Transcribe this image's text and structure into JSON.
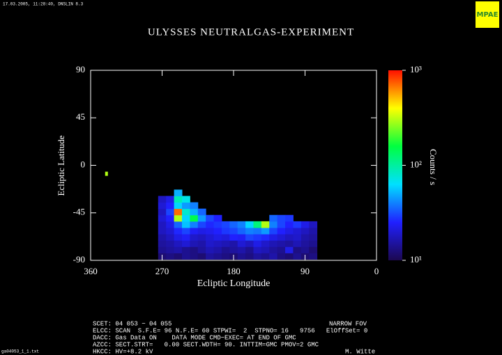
{
  "header": {
    "stamp": "17.03.2005, 11:28:40, DNSLIN 8.3",
    "logo": "MPAE"
  },
  "chart_data": {
    "type": "heatmap",
    "title": "ULYSSES NEUTRALGAS-EXPERIMENT",
    "x_label": "Ecliptic Longitude",
    "y_label": "Ecliptic Latitude",
    "xlim": [
      360,
      0
    ],
    "xticks": [
      360,
      270,
      180,
      90,
      0
    ],
    "ylim": [
      -90,
      90
    ],
    "yticks": [
      90,
      45,
      0,
      -45,
      -90
    ],
    "x": [
      270,
      260,
      250,
      240,
      230,
      220,
      210,
      200,
      190,
      180,
      170,
      160,
      150,
      140,
      130,
      120,
      110,
      100,
      90,
      80
    ],
    "y": [
      -86,
      -80,
      -74,
      -68,
      -62,
      -56,
      -50,
      -44,
      -38,
      -32,
      -26
    ],
    "z": [
      [
        12,
        13,
        12,
        14,
        13,
        12,
        15,
        14,
        13,
        12,
        14,
        13,
        15,
        14,
        16,
        13,
        12,
        14,
        12,
        13
      ],
      [
        14,
        15,
        16,
        14,
        13,
        15,
        17,
        16,
        14,
        15,
        16,
        14,
        18,
        17,
        15,
        14,
        22,
        13,
        14,
        12
      ],
      [
        15,
        16,
        18,
        20,
        17,
        16,
        19,
        18,
        17,
        16,
        20,
        18,
        22,
        19,
        17,
        16,
        15,
        17,
        15,
        14
      ],
      [
        16,
        18,
        22,
        24,
        19,
        18,
        20,
        22,
        21,
        25,
        24,
        30,
        28,
        26,
        22,
        20,
        18,
        19,
        16,
        15
      ],
      [
        18,
        20,
        26,
        30,
        24,
        22,
        23,
        25,
        28,
        30,
        35,
        40,
        38,
        45,
        30,
        25,
        22,
        20,
        18,
        16
      ],
      [
        18,
        22,
        35,
        55,
        40,
        30,
        26,
        28,
        30,
        35,
        40,
        60,
        120,
        300,
        40,
        30,
        25,
        28,
        22,
        18
      ],
      [
        20,
        25,
        300,
        60,
        150,
        45,
        30,
        25,
        null,
        null,
        null,
        null,
        null,
        null,
        35,
        30,
        28,
        null,
        null,
        null
      ],
      [
        18,
        30,
        700,
        80,
        50,
        35,
        null,
        null,
        null,
        null,
        null,
        null,
        null,
        null,
        null,
        null,
        null,
        null,
        null,
        null
      ],
      [
        20,
        25,
        60,
        45,
        40,
        null,
        null,
        null,
        null,
        null,
        null,
        null,
        null,
        null,
        null,
        null,
        null,
        null,
        null,
        null
      ],
      [
        18,
        22,
        90,
        70,
        null,
        null,
        null,
        null,
        null,
        null,
        null,
        null,
        null,
        null,
        null,
        null,
        null,
        null,
        null,
        null
      ],
      [
        null,
        null,
        50,
        null,
        null,
        null,
        null,
        null,
        null,
        null,
        null,
        null,
        null,
        null,
        null,
        null,
        null,
        null,
        null,
        null
      ]
    ],
    "isolated": {
      "x": 340,
      "y": -8,
      "z": 300
    },
    "colorbar": {
      "label": "Counts / s",
      "lim": [
        10,
        1000
      ],
      "log": true,
      "ticks": [
        {
          "value": 1000,
          "label": "10³"
        },
        {
          "value": 100,
          "label": "10²"
        },
        {
          "value": 10,
          "label": "10¹"
        }
      ],
      "colors": [
        "#1c0850",
        "#2020ff",
        "#00e0ff",
        "#00ff40",
        "#ffff00",
        "#ff1000"
      ]
    }
  },
  "footer": {
    "scet": "SCET: 04 053 − 04 055",
    "fov": "NARROW FOV",
    "elcc": "ELCC: SCAN  S.F.E= 96 N.F.E= 60 STPWI=  2  STPNO= 16   9756   ElOffSet= 0",
    "dacc": "DACC: Gas Data ON    DATA MODE CMD−EXEC= AT END OF GMC",
    "azcc": "AZCC: SECT.STRT=   0.00 SECT.WDTH= 90. INTTIM=GMC PMOV=2 GMC",
    "hkcc": "HKCC: HV=+8.2 kV",
    "author": "M. Witte",
    "file": "ga04053_1_1.txt"
  }
}
